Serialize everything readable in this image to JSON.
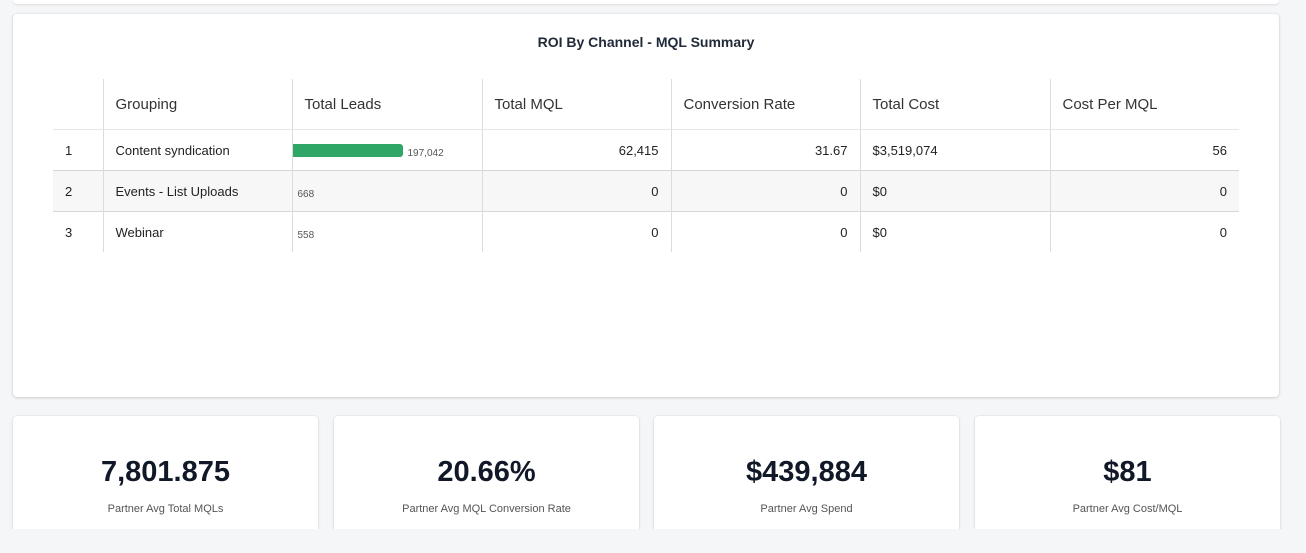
{
  "report": {
    "title": "ROI By Channel - MQL Summary",
    "columns": [
      "",
      "Grouping",
      "Total Leads",
      "Total MQL",
      "Conversion Rate",
      "Total Cost",
      "Cost Per MQL"
    ],
    "rows": [
      {
        "index": "1",
        "grouping": "Content syndication",
        "total_leads": "197,042",
        "total_leads_value": 197042,
        "total_mql": "62,415",
        "conversion_rate": "31.67",
        "total_cost": "$3,519,074",
        "cost_per_mql": "56"
      },
      {
        "index": "2",
        "grouping": "Events - List Uploads",
        "total_leads": "668",
        "total_leads_value": 668,
        "total_mql": "0",
        "conversion_rate": "0",
        "total_cost": "$0",
        "cost_per_mql": "0"
      },
      {
        "index": "3",
        "grouping": "Webinar",
        "total_leads": "558",
        "total_leads_value": 558,
        "total_mql": "0",
        "conversion_rate": "0",
        "total_cost": "$0",
        "cost_per_mql": "0"
      }
    ],
    "bar_color": "#30a666"
  },
  "kpis": [
    {
      "value": "7,801.875",
      "label": "Partner Avg Total MQLs"
    },
    {
      "value": "20.66%",
      "label": "Partner Avg MQL Conversion Rate"
    },
    {
      "value": "$439,884",
      "label": "Partner Avg Spend"
    },
    {
      "value": "$81",
      "label": "Partner Avg Cost/MQL"
    }
  ]
}
